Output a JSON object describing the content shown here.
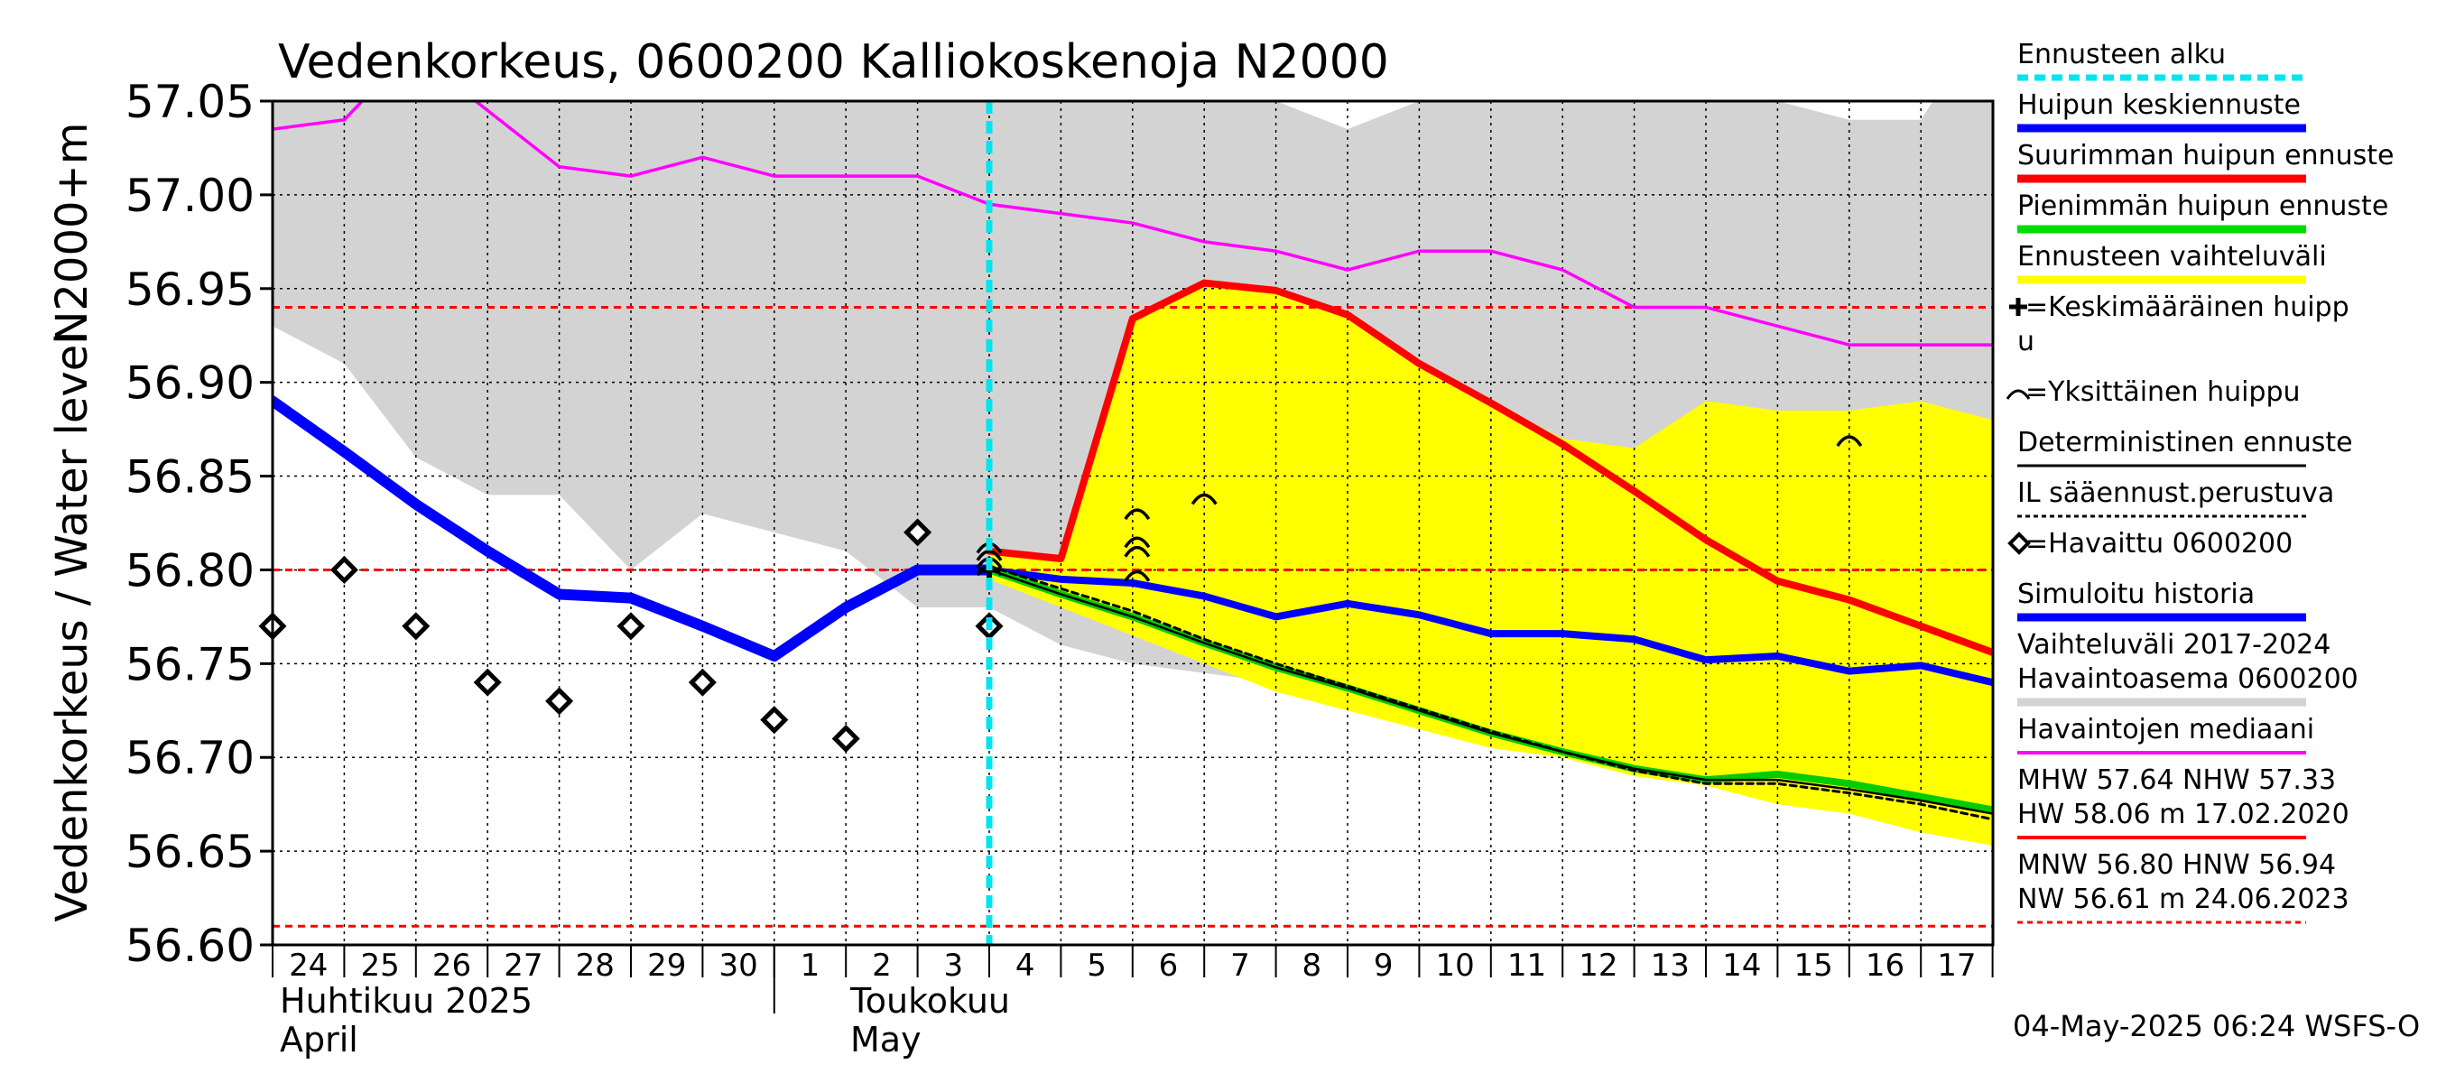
{
  "chart_data": {
    "type": "line",
    "title": "Vedenkorkeus, 0600200 Kalliokoskenoja N2000",
    "ylabel_left": "Vedenkorkeus / Water level",
    "ylabel_top": "N2000+m",
    "ylim": [
      56.6,
      57.05
    ],
    "y_ticks": [
      "56.60",
      "56.65",
      "56.70",
      "56.75",
      "56.80",
      "56.85",
      "56.90",
      "56.95",
      "57.00",
      "57.05"
    ],
    "x_range": [
      0,
      24
    ],
    "x_day_labels": [
      {
        "x": 0,
        "label": "24"
      },
      {
        "x": 1,
        "label": "25"
      },
      {
        "x": 2,
        "label": "26"
      },
      {
        "x": 3,
        "label": "27"
      },
      {
        "x": 4,
        "label": "28"
      },
      {
        "x": 5,
        "label": "29"
      },
      {
        "x": 6,
        "label": "30"
      },
      {
        "x": 7,
        "label": "1"
      },
      {
        "x": 8,
        "label": "2"
      },
      {
        "x": 9,
        "label": "3"
      },
      {
        "x": 10,
        "label": "4"
      },
      {
        "x": 11,
        "label": "5"
      },
      {
        "x": 12,
        "label": "6"
      },
      {
        "x": 13,
        "label": "7"
      },
      {
        "x": 14,
        "label": "8"
      },
      {
        "x": 15,
        "label": "9"
      },
      {
        "x": 16,
        "label": "10"
      },
      {
        "x": 17,
        "label": "11"
      },
      {
        "x": 18,
        "label": "12"
      },
      {
        "x": 19,
        "label": "13"
      },
      {
        "x": 20,
        "label": "14"
      },
      {
        "x": 21,
        "label": "15"
      },
      {
        "x": 22,
        "label": "16"
      },
      {
        "x": 23,
        "label": "17"
      }
    ],
    "month_labels": {
      "april_fi": "Huhtikuu  2025",
      "april_en": "April",
      "may_fi": "Toukokuu",
      "may_en": "May"
    },
    "forecast_start_x": 10,
    "hlines": [
      {
        "y": 56.94,
        "color": "#ff0000"
      },
      {
        "y": 56.8,
        "color": "#ff0000"
      },
      {
        "y": 56.61,
        "color": "#ff0000"
      }
    ],
    "series": [
      {
        "name": "Vaihteluväli 2017-2024",
        "role": "band",
        "color": "#d3d3d3",
        "x": [
          0,
          1,
          2,
          3,
          4,
          5,
          6,
          7,
          8,
          9,
          10,
          11,
          12,
          13,
          14,
          15,
          16,
          17,
          18,
          19,
          20,
          21,
          22,
          23,
          24
        ],
        "upper": [
          57.1,
          57.1,
          57.1,
          57.1,
          57.1,
          57.1,
          57.1,
          57.1,
          57.1,
          57.1,
          57.1,
          57.1,
          57.1,
          57.1,
          57.05,
          57.035,
          57.05,
          57.1,
          57.1,
          57.1,
          57.1,
          57.05,
          57.04,
          57.04,
          57.1
        ],
        "lower": [
          56.93,
          56.91,
          56.86,
          56.84,
          56.84,
          56.8,
          56.83,
          56.82,
          56.81,
          56.78,
          56.78,
          56.76,
          56.75,
          56.745,
          56.74,
          56.73,
          56.72,
          56.71,
          56.7,
          56.69,
          56.69,
          56.68,
          56.69,
          56.7,
          56.69
        ]
      },
      {
        "name": "Ennusteen vaihteluväli",
        "role": "band",
        "color": "#ffff00",
        "x": [
          10,
          11,
          12,
          13,
          14,
          15,
          16,
          17,
          18,
          19,
          20,
          21,
          22,
          23,
          24
        ],
        "upper": [
          56.81,
          56.805,
          56.935,
          56.955,
          56.95,
          56.935,
          56.91,
          56.89,
          56.87,
          56.865,
          56.89,
          56.885,
          56.885,
          56.89,
          56.88
        ],
        "lower": [
          56.795,
          56.78,
          56.765,
          56.75,
          56.735,
          56.725,
          56.715,
          56.705,
          56.7,
          56.69,
          56.685,
          56.675,
          56.67,
          56.66,
          56.653
        ]
      },
      {
        "name": "Havaintojen mediaani",
        "role": "line",
        "color": "#ff00ff",
        "x": [
          0,
          1,
          1.5,
          2.5,
          3,
          4,
          5,
          6,
          7,
          8,
          9,
          10,
          11,
          12,
          13,
          14,
          15,
          16,
          17,
          18,
          19,
          20,
          21,
          22,
          23,
          24
        ],
        "y": [
          57.035,
          57.04,
          57.06,
          57.06,
          57.045,
          57.015,
          57.01,
          57.02,
          57.01,
          57.01,
          57.01,
          56.995,
          56.99,
          56.985,
          56.975,
          56.97,
          56.96,
          56.97,
          56.97,
          56.96,
          56.94,
          56.94,
          56.93,
          56.92,
          56.92,
          56.92
        ]
      },
      {
        "name": "Simuloitu historia",
        "role": "line",
        "color": "#0000ff",
        "x": [
          0,
          1,
          2,
          3,
          4,
          5,
          6,
          7,
          8,
          9,
          10
        ],
        "y": [
          56.89,
          56.863,
          56.835,
          56.81,
          56.787,
          56.785,
          56.77,
          56.754,
          56.78,
          56.8,
          56.8
        ]
      },
      {
        "name": "Huipun keskiennuste",
        "role": "line",
        "color": "#0000ff",
        "x": [
          10,
          11,
          12,
          13,
          14,
          15,
          16,
          17,
          18,
          19,
          20,
          21,
          22,
          23,
          24
        ],
        "y": [
          56.8,
          56.795,
          56.793,
          56.786,
          56.775,
          56.782,
          56.776,
          56.766,
          56.766,
          56.763,
          56.752,
          56.754,
          56.746,
          56.749,
          56.74
        ]
      },
      {
        "name": "Suurimman huipun ennuste",
        "role": "line",
        "color": "#ff0000",
        "x": [
          10,
          11,
          12,
          13,
          14,
          15,
          16,
          17,
          18,
          19,
          20,
          21,
          22,
          23,
          24
        ],
        "y": [
          56.81,
          56.806,
          56.934,
          56.953,
          56.949,
          56.936,
          56.91,
          56.889,
          56.867,
          56.842,
          56.816,
          56.794,
          56.784,
          56.77,
          56.756
        ]
      },
      {
        "name": "Pienimmän huipun ennuste",
        "role": "line",
        "color": "#00cc00",
        "x": [
          10,
          11,
          12,
          13,
          14,
          15,
          16,
          17,
          18,
          19,
          20,
          21,
          22,
          23,
          24
        ],
        "y": [
          56.8,
          56.787,
          56.775,
          56.761,
          56.748,
          56.737,
          56.725,
          56.713,
          56.703,
          56.694,
          56.688,
          56.691,
          56.686,
          56.679,
          56.672
        ]
      },
      {
        "name": "Deterministinen ennuste",
        "role": "line",
        "color": "#000000",
        "x": [
          10,
          11,
          12,
          13,
          14,
          15,
          16,
          17,
          18,
          19,
          20,
          21,
          22,
          23,
          24
        ],
        "y": [
          56.8,
          56.787,
          56.775,
          56.761,
          56.748,
          56.737,
          56.725,
          56.713,
          56.703,
          56.694,
          56.688,
          56.688,
          56.683,
          56.677,
          56.67
        ]
      },
      {
        "name": "IL sääennust.perustuva",
        "role": "dashed",
        "color": "#000000",
        "x": [
          10,
          11,
          12,
          13,
          14,
          15,
          16,
          17,
          18,
          19,
          20,
          21,
          22,
          23,
          24
        ],
        "y": [
          56.802,
          56.79,
          56.778,
          56.763,
          56.75,
          56.738,
          56.726,
          56.714,
          56.703,
          56.693,
          56.686,
          56.686,
          56.681,
          56.675,
          56.667
        ]
      },
      {
        "name": "Havaittu 0600200",
        "role": "diamonds",
        "color": "#000000",
        "x": [
          0,
          1,
          2,
          3,
          4,
          5,
          6,
          7,
          8,
          9,
          10
        ],
        "y": [
          56.77,
          56.8,
          56.77,
          56.74,
          56.73,
          56.77,
          56.74,
          56.72,
          56.71,
          56.82,
          56.77
        ]
      },
      {
        "name": "Yksittäinen huippu",
        "role": "arcs",
        "color": "#000000",
        "x": [
          10,
          10,
          10,
          10,
          12,
          12,
          12,
          12,
          13,
          22
        ],
        "y": [
          56.8,
          56.804,
          56.808,
          56.812,
          56.797,
          56.81,
          56.815,
          56.83,
          56.838,
          56.869
        ]
      },
      {
        "name": "Keskimääräinen huippu",
        "role": "plus",
        "color": "#000000",
        "x": [
          10
        ],
        "y": [
          56.8
        ]
      }
    ],
    "legend": {
      "placement": "right",
      "items": [
        {
          "text": "Ennusteen alku",
          "sym": "dash",
          "color": "#00e5ee"
        },
        {
          "text": "Huipun keskiennuste",
          "sym": "thick",
          "color": "#0000ff"
        },
        {
          "text": "Suurimman huipun ennuste",
          "sym": "thick",
          "color": "#ff0000"
        },
        {
          "text": "Pienimmän huipun ennuste",
          "sym": "thick",
          "color": "#00dd00"
        },
        {
          "text": "Ennusteen vaihteluväli",
          "sym": "thick",
          "color": "#ffff00"
        },
        {
          "text": "=Keskimääräinen huipp",
          "text2": "u",
          "sym": "plus",
          "color": "#000000"
        },
        {
          "text": "=Yksittäinen huippu",
          "sym": "arc",
          "color": "#000000"
        },
        {
          "text": "Deterministinen ennuste",
          "sym": "thin",
          "color": "#000000"
        },
        {
          "text": "IL sääennust.perustuva",
          "sym": "dotted",
          "color": "#000000"
        },
        {
          "text": "=Havaittu 0600200",
          "sym": "diamond",
          "color": "#000000"
        },
        {
          "text": "Simuloitu historia",
          "sym": "thick",
          "color": "#0000ff"
        },
        {
          "text": "Vaihteluväli 2017-2024",
          "text2": " Havaintoasema 0600200",
          "sym": "thick",
          "color": "#d3d3d3"
        },
        {
          "text": "Havaintojen mediaani",
          "sym": "medium",
          "color": "#ff00ff"
        },
        {
          "text": "MHW  57.64 NHW  57.33",
          "text2": "HW  58.06 m 17.02.2020",
          "sym": "medium",
          "color": "#ff0000"
        },
        {
          "text": "MNW  56.80 HNW  56.94",
          "text2": "NW  56.61 m 24.06.2023",
          "sym": "redshort",
          "color": "#ff0000"
        }
      ]
    },
    "footer": "04-May-2025 06:24 WSFS-O"
  }
}
